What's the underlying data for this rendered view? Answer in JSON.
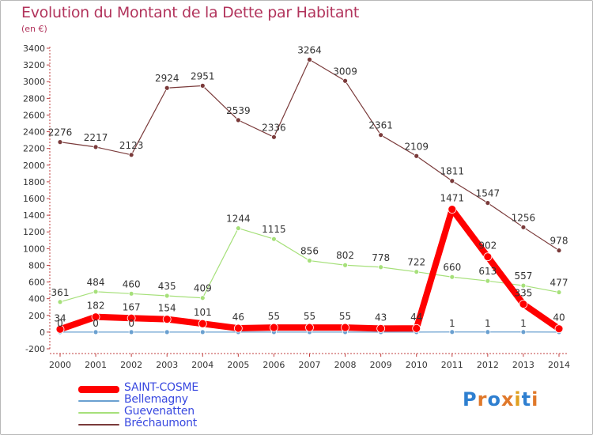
{
  "chart_data": {
    "type": "line",
    "title": "Evolution du Montant de la Dette par Habitant",
    "subtitle": "(en €)",
    "categories": [
      "2000",
      "2001",
      "2002",
      "2003",
      "2004",
      "2005",
      "2006",
      "2007",
      "2008",
      "2009",
      "2010",
      "2011",
      "2012",
      "2013",
      "2014"
    ],
    "ylim": [
      -200,
      3400
    ],
    "yticks": [
      -200,
      0,
      200,
      400,
      600,
      800,
      1000,
      1200,
      1400,
      1600,
      1800,
      2000,
      2200,
      2400,
      2600,
      2800,
      3000,
      3200,
      3400
    ],
    "grid": false,
    "legend_position": "bottom-left",
    "series": [
      {
        "name": "SAINT-COSME",
        "color": "#ff0000",
        "values": [
          34,
          182,
          167,
          154,
          101,
          46,
          55,
          55,
          55,
          43,
          44,
          1471,
          902,
          335,
          40
        ]
      },
      {
        "name": "Bellemagny",
        "color": "#6aa0d0",
        "values": [
          0,
          0,
          0,
          0,
          0,
          0,
          0,
          0,
          0,
          0,
          0,
          1,
          1,
          1,
          0
        ]
      },
      {
        "name": "Guevenatten",
        "color": "#a6e07a",
        "values": [
          361,
          484,
          460,
          435,
          409,
          1244,
          1115,
          856,
          802,
          778,
          722,
          660,
          613,
          557,
          477
        ]
      },
      {
        "name": "Bréchaumont",
        "color": "#7a3a3a",
        "values": [
          2276,
          2217,
          2123,
          2924,
          2951,
          2539,
          2336,
          3264,
          3009,
          2361,
          2109,
          1811,
          1547,
          1256,
          978
        ]
      }
    ],
    "data_labels": {
      "SAINT-COSME": [
        "34",
        "182",
        "167",
        "154",
        "101",
        "46",
        "55",
        "55",
        "55",
        "43",
        "44",
        "1471",
        "902",
        "335",
        "40"
      ],
      "Bellemagny": [
        "0",
        "0",
        "0",
        "",
        "",
        "",
        "",
        "",
        "",
        "",
        "",
        "1",
        "1",
        "1",
        ""
      ],
      "Guevenatten": [
        "361",
        "484",
        "460",
        "435",
        "409",
        "1244",
        "1115",
        "856",
        "802",
        "778",
        "722",
        "660",
        "613",
        "557",
        "477"
      ],
      "Bréchaumont": [
        "2276",
        "2217",
        "2123",
        "2924",
        "2951",
        "2539",
        "2336",
        "3264",
        "3009",
        "2361",
        "2109",
        "1811",
        "1547",
        "1256",
        "978"
      ]
    }
  },
  "legend": {
    "items": [
      {
        "label": "SAINT-COSME",
        "color": "#ff0000",
        "thickness": "thick"
      },
      {
        "label": "Bellemagny",
        "color": "#6aa0d0",
        "thickness": "thin"
      },
      {
        "label": "Guevenatten",
        "color": "#a6e07a",
        "thickness": "thin"
      },
      {
        "label": "Bréchaumont",
        "color": "#7a3a3a",
        "thickness": "thin"
      }
    ]
  },
  "logo": {
    "text": "Proxiti",
    "letter_colors": [
      "#2e7fd0",
      "#e0782a",
      "#2e7fd0",
      "#e0782a",
      "#e0a020",
      "#2e7fd0",
      "#e0782a"
    ]
  }
}
